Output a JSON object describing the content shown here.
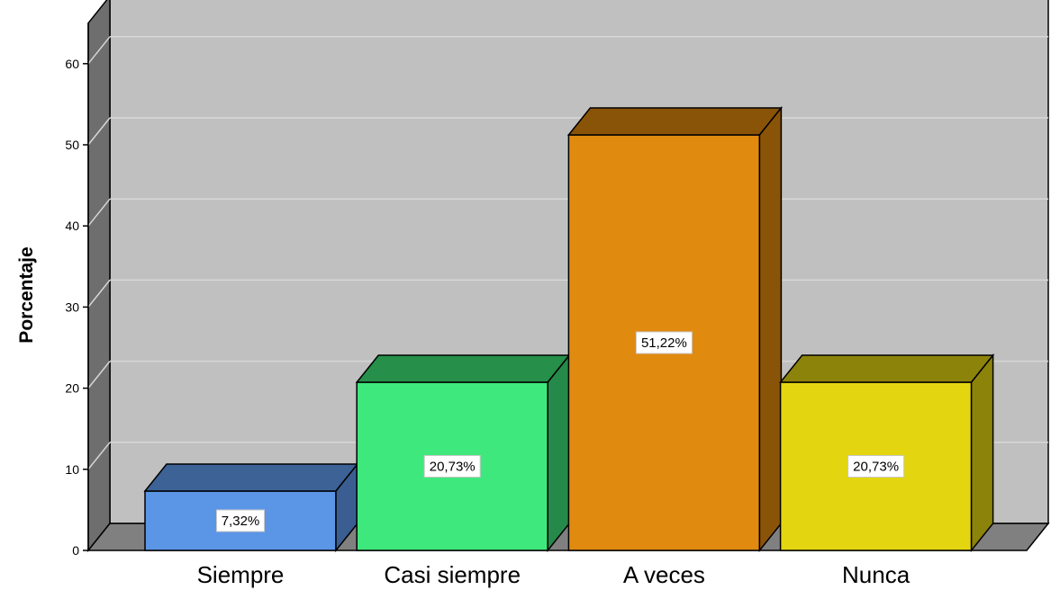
{
  "chart_data": {
    "type": "bar",
    "ylabel": "Porcentaje",
    "xlabel": "",
    "categories": [
      "Siempre",
      "Casi siempre",
      "A veces",
      "Nunca"
    ],
    "values": [
      7.32,
      20.73,
      51.22,
      20.73
    ],
    "data_labels": [
      "7,32%",
      "20,73%",
      "51,22%",
      "20,73%"
    ],
    "ylim": [
      0,
      65
    ],
    "yticks": [
      0,
      10,
      20,
      30,
      40,
      50,
      60
    ],
    "grid": true,
    "legend": "none",
    "colors": {
      "front": [
        "#5b95e6",
        "#3fe87c",
        "#e08a10",
        "#e3d611"
      ],
      "top": [
        "#3c6296",
        "#268f4a",
        "#8a5408",
        "#8c830a"
      ],
      "side": [
        "#3a5e91",
        "#25894a",
        "#8a5408",
        "#8c830a"
      ],
      "wall": "#c0c0c0",
      "floor": "#808080",
      "side_wall": "#6e6e6e"
    }
  }
}
